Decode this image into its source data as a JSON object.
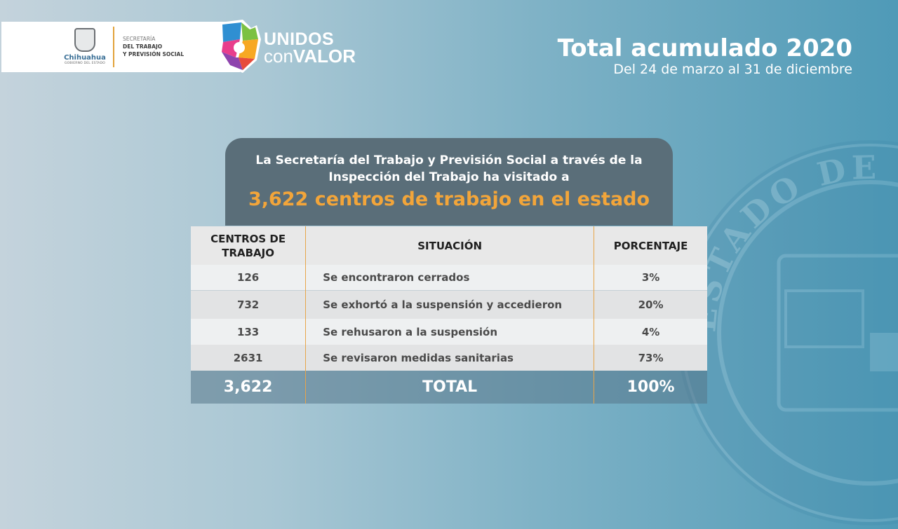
{
  "header": {
    "gov_logo_name": "Chihuahua",
    "gov_logo_sub": "GOBIERNO DEL ESTADO",
    "secretaria_line1": "SECRETARÍA",
    "secretaria_line2": "DEL TRABAJO",
    "secretaria_line3": "Y PREVISIÓN SOCIAL",
    "campaign_line1": "UNIDOS",
    "campaign_line2_a": "con",
    "campaign_line2_b": "VALOR",
    "watermark_text": "ESTADO DE CH"
  },
  "title": {
    "main": "Total acumulado 2020",
    "sub": "Del 24 de marzo al 31 de diciembre"
  },
  "panel": {
    "text": "La Secretaría del Trabajo y Previsión Social a través de la Inspección del Trabajo ha visitado a",
    "highlight": "3,622 centros de trabajo en el estado"
  },
  "table": {
    "headers": [
      "CENTROS DE TRABAJO",
      "SITUACIÓN",
      "PORCENTAJE"
    ],
    "rows": [
      {
        "centros": "126",
        "situacion": "Se encontraron cerrados",
        "porcentaje": "3%"
      },
      {
        "centros": "732",
        "situacion": "Se exhortó a la suspensión y accedieron",
        "porcentaje": "20%"
      },
      {
        "centros": "133",
        "situacion": "Se rehusaron a la suspensión",
        "porcentaje": "4%"
      },
      {
        "centros": "2631",
        "situacion": "Se revisaron medidas sanitarias",
        "porcentaje": "73%"
      }
    ],
    "total": {
      "centros": "3,622",
      "label": "TOTAL",
      "porcentaje": "100%"
    }
  },
  "colors": {
    "accent_orange": "#f2a53a",
    "panel_bg": "#5a6e79",
    "background_end": "#4f9ab7"
  }
}
